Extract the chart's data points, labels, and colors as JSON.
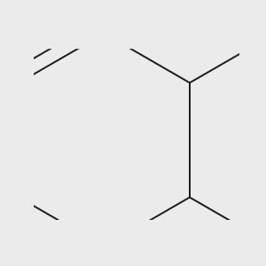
{
  "background_color": "#ebebeb",
  "bond_color": "#1a1a1a",
  "oxygen_color": "#ee0000",
  "bond_width": 1.4,
  "figsize": [
    3.0,
    3.0
  ],
  "dpi": 100,
  "xlim": [
    -0.5,
    1.3
  ],
  "ylim": [
    -0.7,
    0.8
  ]
}
